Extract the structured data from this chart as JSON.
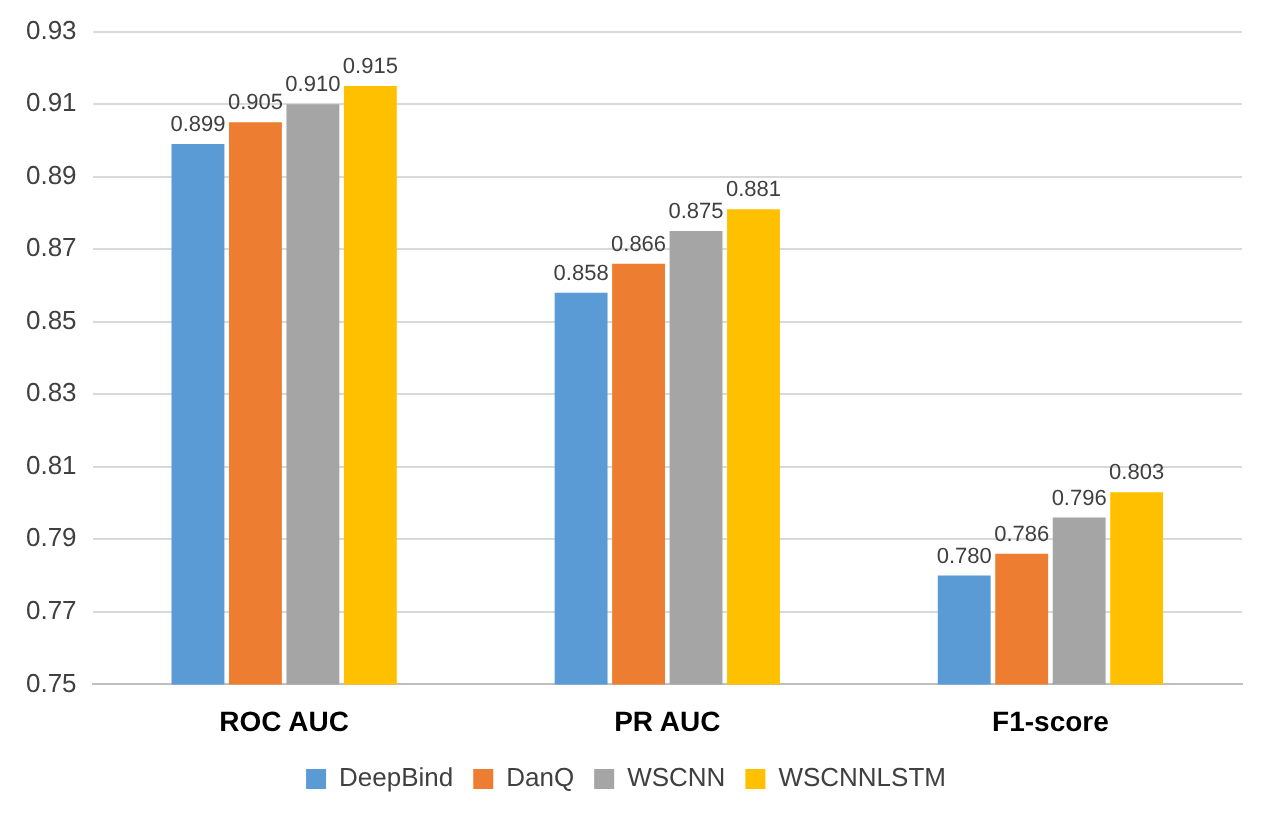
{
  "chart_data": {
    "type": "bar",
    "categories": [
      "ROC AUC",
      "PR AUC",
      "F1-score"
    ],
    "series": [
      {
        "name": "DeepBind",
        "color": "#5b9bd5",
        "values": [
          0.899,
          0.858,
          0.78
        ],
        "value_labels": [
          "0.899",
          "0.858",
          "0.780"
        ]
      },
      {
        "name": "DanQ",
        "color": "#ed7d31",
        "values": [
          0.905,
          0.866,
          0.786
        ],
        "value_labels": [
          "0.905",
          "0.866",
          "0.786"
        ]
      },
      {
        "name": "WSCNN",
        "color": "#a5a5a5",
        "values": [
          0.91,
          0.875,
          0.796
        ],
        "value_labels": [
          "0.910",
          "0.875",
          "0.796"
        ]
      },
      {
        "name": "WSCNNLSTM",
        "color": "#ffc000",
        "values": [
          0.915,
          0.881,
          0.803
        ],
        "value_labels": [
          "0.915",
          "0.881",
          "0.803"
        ]
      }
    ],
    "ylim": [
      0.75,
      0.93
    ],
    "yticks": [
      0.75,
      0.77,
      0.79,
      0.81,
      0.83,
      0.85,
      0.87,
      0.89,
      0.91,
      0.93
    ],
    "grid": "y",
    "legend": "bottom"
  }
}
